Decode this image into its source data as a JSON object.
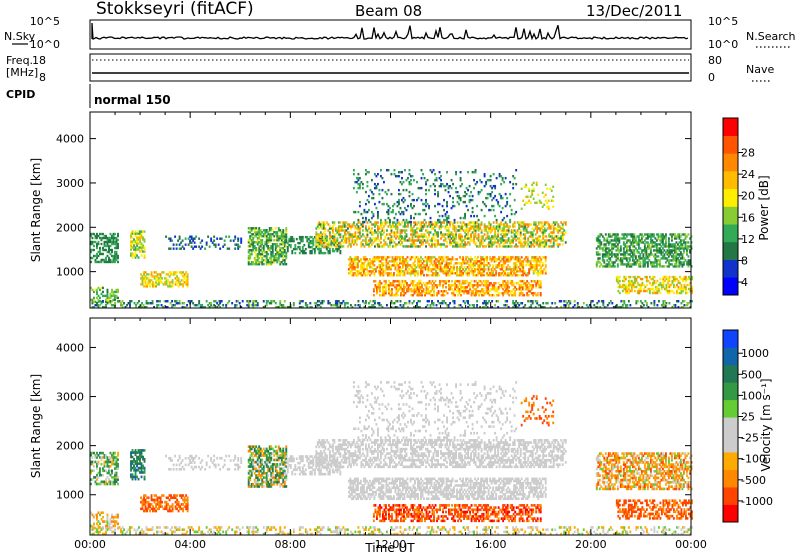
{
  "header": {
    "title": "Stokkseyri (fitACF)",
    "beam": "Beam 08",
    "date": "13/Dec/2011"
  },
  "top_panels": {
    "nsky_label": "N.Sky",
    "nsearch_label": "N.Search",
    "freq_label": "Freq.",
    "freq_unit": "[MHz]",
    "nave_label": "Nave",
    "cpid_label": "CPID",
    "cpid_value": "normal 150",
    "count_ticks": [
      "10^5",
      "10^0"
    ],
    "freq_ticks": [
      "18",
      "8"
    ],
    "nave_ticks": [
      "80",
      "0"
    ]
  },
  "colorbars": {
    "power": {
      "label": "Power [dB]",
      "ticks": [
        "28",
        "24",
        "20",
        "16",
        "12",
        "8",
        "4"
      ],
      "colors": [
        "#0000ff",
        "#1133cc",
        "#227744",
        "#33aa55",
        "#88cc33",
        "#ffee00",
        "#ffbb00",
        "#ff8800",
        "#ff5500",
        "#ff0000"
      ]
    },
    "velocity": {
      "label": "Velocity [m s⁻¹]",
      "ticks": [
        "1000",
        "500",
        "100",
        "25",
        "-25",
        "-100",
        "-500",
        "-1000"
      ],
      "colors": [
        "#1144ff",
        "#1166aa",
        "#227755",
        "#339944",
        "#66cc33",
        "#cccccc",
        "#cccccc",
        "#ffaa00",
        "#ff8800",
        "#ff4400",
        "#ff0000"
      ]
    }
  },
  "chart_data": [
    {
      "type": "heatmap",
      "name": "power",
      "ylabel": "Slant Range [km]",
      "xlabel": "Time UT",
      "x_ticks": [
        "00:00",
        "04:00",
        "08:00",
        "12:00",
        "16:00",
        "20:00",
        "00:00"
      ],
      "y_ticks": [
        "1000",
        "2000",
        "3000",
        "4000"
      ],
      "xlim": [
        0,
        24
      ],
      "ylim": [
        180,
        4600
      ],
      "x_unit": "hours UT",
      "y_unit": "km",
      "colorbar": "power"
    },
    {
      "type": "heatmap",
      "name": "velocity",
      "ylabel": "Slant Range [km]",
      "xlabel": "Time UT",
      "x_ticks": [
        "00:00",
        "04:00",
        "08:00",
        "12:00",
        "16:00",
        "20:00",
        "00:00"
      ],
      "y_ticks": [
        "1000",
        "2000",
        "3000",
        "4000"
      ],
      "xlim": [
        0,
        24
      ],
      "ylim": [
        180,
        4600
      ],
      "x_unit": "hours UT",
      "y_unit": "km",
      "colorbar": "velocity"
    }
  ],
  "scatter_regions": [
    {
      "t0": 0.0,
      "t1": 1.1,
      "r0": 1200,
      "r1": 1850,
      "d": 0.55,
      "p": [
        8,
        14
      ],
      "v": [
        -100,
        300
      ]
    },
    {
      "t0": 0.0,
      "t1": 1.1,
      "r0": 300,
      "r1": 650,
      "d": 0.45,
      "p": [
        10,
        18
      ],
      "v": [
        -200,
        100
      ]
    },
    {
      "t0": 1.6,
      "t1": 2.2,
      "r0": 1300,
      "r1": 1900,
      "d": 0.6,
      "p": [
        12,
        22
      ],
      "v": [
        100,
        600
      ]
    },
    {
      "t0": 2.0,
      "t1": 3.9,
      "r0": 650,
      "r1": 1000,
      "d": 0.55,
      "p": [
        14,
        24
      ],
      "v": [
        -400,
        -100
      ]
    },
    {
      "t0": 3.0,
      "t1": 6.0,
      "r0": 1500,
      "r1": 1800,
      "d": 0.25,
      "p": [
        6,
        12
      ],
      "v": [
        -25,
        25
      ]
    },
    {
      "t0": 6.3,
      "t1": 7.8,
      "r0": 1150,
      "r1": 2000,
      "d": 0.65,
      "p": [
        8,
        18
      ],
      "v": [
        -200,
        400
      ]
    },
    {
      "t0": 7.8,
      "t1": 10.0,
      "r0": 1400,
      "r1": 1800,
      "d": 0.45,
      "p": [
        8,
        14
      ],
      "v": [
        -25,
        25
      ]
    },
    {
      "t0": 9.0,
      "t1": 19.0,
      "r0": 1550,
      "r1": 2100,
      "d": 0.55,
      "p": [
        10,
        26
      ],
      "v": [
        -25,
        25
      ]
    },
    {
      "t0": 10.3,
      "t1": 18.2,
      "r0": 900,
      "r1": 1350,
      "d": 0.6,
      "p": [
        16,
        28
      ],
      "v": [
        -25,
        25
      ]
    },
    {
      "t0": 11.3,
      "t1": 18.0,
      "r0": 450,
      "r1": 800,
      "d": 0.55,
      "p": [
        18,
        28
      ],
      "v": [
        -600,
        -100
      ]
    },
    {
      "t0": 10.5,
      "t1": 17.0,
      "r0": 2100,
      "r1": 3300,
      "d": 0.13,
      "p": [
        6,
        14
      ],
      "v": [
        -25,
        25
      ]
    },
    {
      "t0": 17.2,
      "t1": 18.5,
      "r0": 2400,
      "r1": 3000,
      "d": 0.2,
      "p": [
        14,
        22
      ],
      "v": [
        -500,
        -100
      ]
    },
    {
      "t0": 20.2,
      "t1": 24.0,
      "r0": 1100,
      "r1": 1850,
      "d": 0.6,
      "p": [
        8,
        16
      ],
      "v": [
        -300,
        100
      ]
    },
    {
      "t0": 21.0,
      "t1": 24.0,
      "r0": 500,
      "r1": 900,
      "d": 0.5,
      "p": [
        14,
        24
      ],
      "v": [
        -500,
        -100
      ]
    },
    {
      "t0": 0.0,
      "t1": 24.0,
      "r0": 180,
      "r1": 350,
      "d": 0.35,
      "p": [
        6,
        16
      ],
      "v": [
        -100,
        100
      ]
    }
  ]
}
